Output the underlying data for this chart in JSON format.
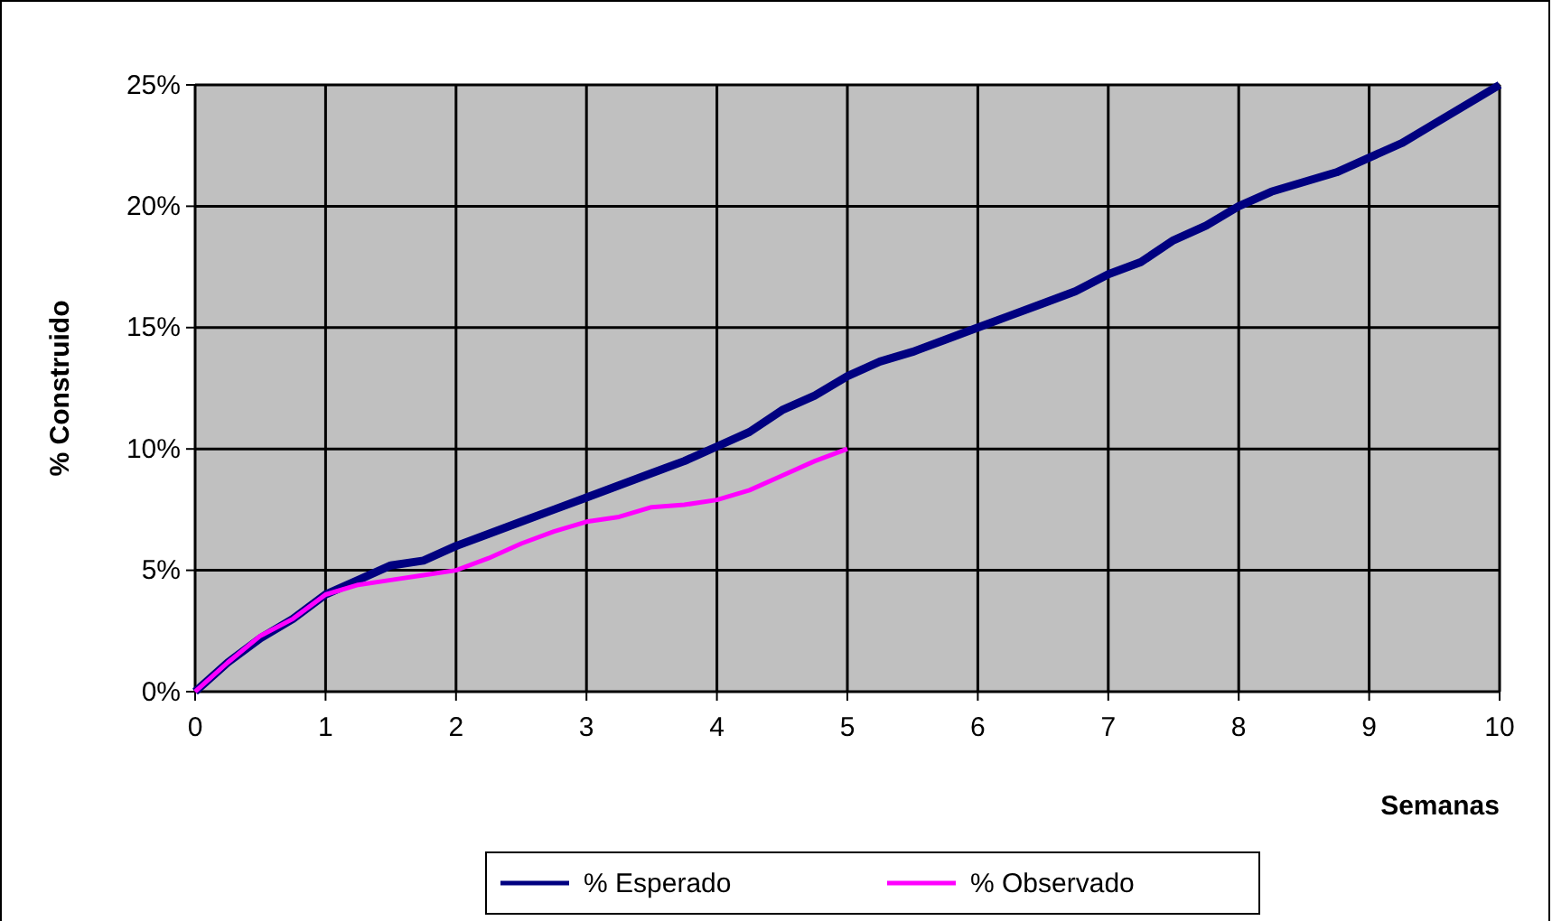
{
  "chart_data": {
    "type": "line",
    "xlabel": "Semanas",
    "ylabel": "% Construido",
    "series": [
      {
        "name": "% Esperado",
        "color": "#000080",
        "x": [
          0,
          0.25,
          0.5,
          0.75,
          1,
          1.25,
          1.5,
          1.75,
          2,
          2.25,
          2.5,
          2.75,
          3,
          3.25,
          3.5,
          3.75,
          4,
          4.25,
          4.5,
          4.75,
          5,
          5.25,
          5.5,
          5.75,
          6,
          6.25,
          6.5,
          6.75,
          7,
          7.25,
          7.5,
          7.75,
          8,
          8.25,
          8.5,
          8.75,
          9,
          9.25,
          9.5,
          9.75,
          10
        ],
        "values": [
          0,
          1.2,
          2.2,
          3.0,
          4.0,
          4.6,
          5.2,
          5.4,
          6.0,
          6.5,
          7.0,
          7.5,
          8.0,
          8.5,
          9.0,
          9.5,
          10.1,
          10.7,
          11.6,
          12.2,
          13.0,
          13.6,
          14.0,
          14.5,
          15.0,
          15.5,
          16.0,
          16.5,
          17.2,
          17.7,
          18.6,
          19.2,
          20.0,
          20.6,
          21.0,
          21.4,
          22.0,
          22.6,
          23.4,
          24.2,
          25
        ]
      },
      {
        "name": "% Observado",
        "color": "#ff00ff",
        "x": [
          0,
          0.25,
          0.5,
          0.75,
          1,
          1.25,
          1.5,
          1.75,
          2,
          2.25,
          2.5,
          2.75,
          3,
          3.25,
          3.5,
          3.75,
          4,
          4.25,
          4.5,
          4.75,
          5
        ],
        "values": [
          0,
          1.2,
          2.3,
          3.0,
          4.0,
          4.4,
          4.6,
          4.8,
          5.0,
          5.5,
          6.1,
          6.6,
          7.0,
          7.2,
          7.6,
          7.7,
          7.9,
          8.3,
          8.9,
          9.5,
          10.0
        ]
      }
    ],
    "xlim": [
      0,
      10
    ],
    "xticks": [
      0,
      1,
      2,
      3,
      4,
      5,
      6,
      7,
      8,
      9,
      10
    ],
    "ylim": [
      0,
      25
    ],
    "yticks": [
      {
        "value": 0,
        "label": "0%"
      },
      {
        "value": 5,
        "label": "5%"
      },
      {
        "value": 10,
        "label": "10%"
      },
      {
        "value": 15,
        "label": "15%"
      },
      {
        "value": 20,
        "label": "20%"
      },
      {
        "value": 25,
        "label": "25%"
      }
    ],
    "grid": true,
    "legend": "bottom",
    "marker": "none",
    "line_style": "solid"
  }
}
